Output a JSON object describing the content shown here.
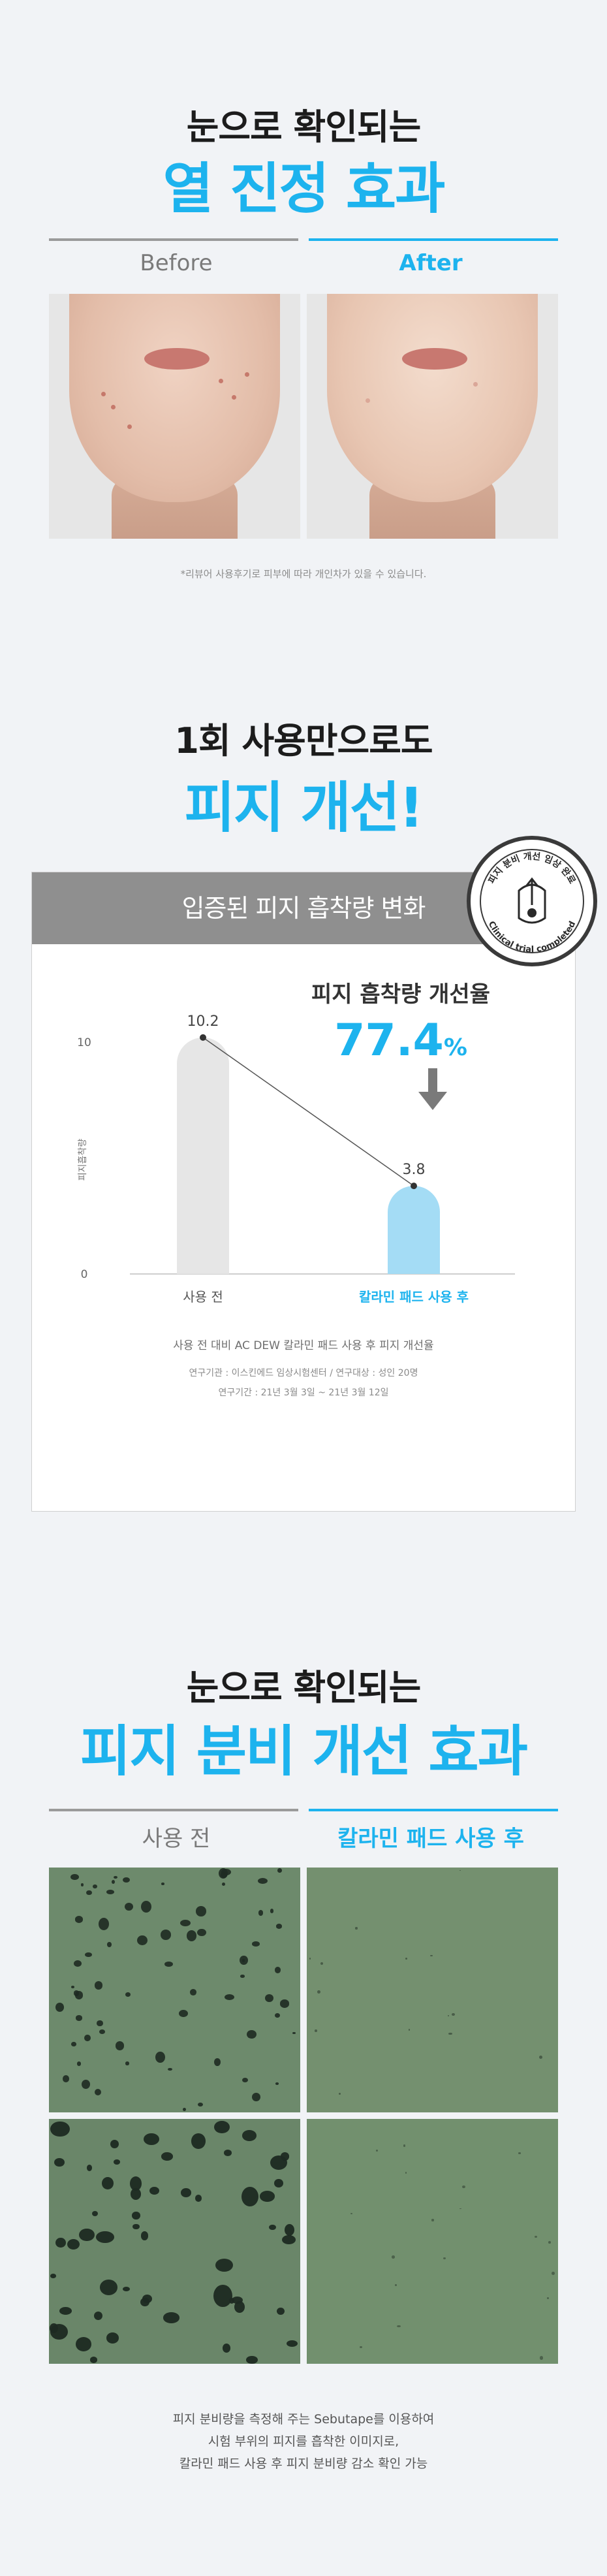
{
  "section1": {
    "heading_small": "눈으로 확인되는",
    "heading_big": "열 진정 효과",
    "before_label": "Before",
    "after_label": "After",
    "note": "*리뷰어 사용후기로 피부에 따라 개인차가 있을 수 있습니다."
  },
  "section2": {
    "heading_small": "1회 사용만으로도",
    "heading_big": "피지 개선!",
    "banner": "입증된 피지 흡착량 변화",
    "badge_top": "피지 분비 개선 임상 완료",
    "badge_bottom": "Clinical trial completed",
    "ylabel": "피지흡착량",
    "improve_label": "피지 흡착량 개선율",
    "improve_value": "77.4",
    "improve_unit": "%",
    "note_main": "사용 전 대비 AC DEW 칼라민 패드 사용 후  피지 개선율",
    "note_org": "연구기관 : 이스킨에드 임상시험센터  / 연구대상 : 성인 20명",
    "note_period": "연구기간 : 21년 3월 3일 ~ 21년 3월 12일"
  },
  "chart_data": {
    "type": "bar",
    "categories": [
      "사용 전",
      "칼라민 패드 사용 후"
    ],
    "values": [
      10.2,
      3.8
    ],
    "value_labels": [
      "10.2",
      "3.8"
    ],
    "ylabel": "피지흡착량",
    "ylim": [
      0,
      10
    ],
    "yticks": [
      "0",
      "10"
    ],
    "colors": [
      "#e6e6e6",
      "#a4dcf5"
    ],
    "category_colors": [
      "#555555",
      "#1db3ee"
    ],
    "connector_line": true,
    "grid": false
  },
  "section3": {
    "heading_small": "눈으로 확인되는",
    "heading_big": "피지 분비 개선 효과",
    "before_label": "사용 전",
    "after_label": "칼라민 패드 사용 후",
    "caption_line1": "피지 분비량을 측정해 주는 Sebutape를 이용하여",
    "caption_line2": "시험 부위의 피지를 흡착한 이미지로,",
    "caption_line3": "칼라민 패드 사용 후 피지 분비량 감소 확인 가능"
  },
  "colors": {
    "accent": "#1db3ee",
    "background": "#f1f3f6",
    "banner_gray": "#8f8f8f"
  }
}
